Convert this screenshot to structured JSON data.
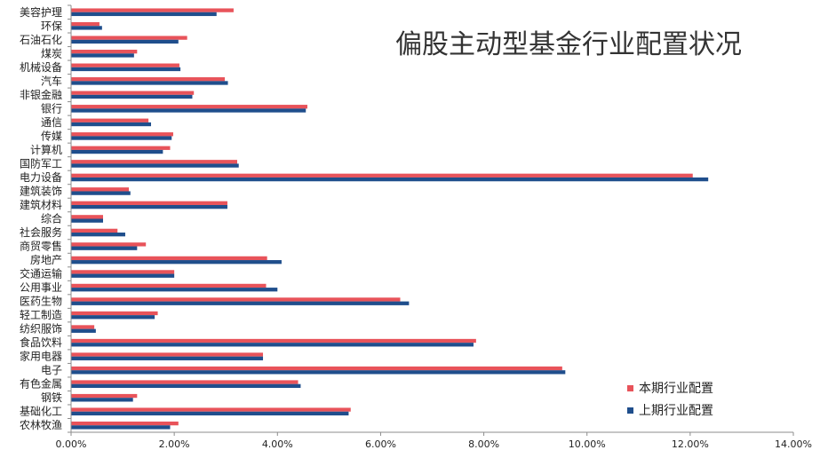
{
  "chart_data": {
    "type": "bar",
    "orientation": "horizontal",
    "title": "偏股主动型基金行业配置状况",
    "categories": [
      "美容护理",
      "环保",
      "石油石化",
      "煤炭",
      "机械设备",
      "汽车",
      "非银金融",
      "银行",
      "通信",
      "传媒",
      "计算机",
      "国防军工",
      "电力设备",
      "建筑装饰",
      "建筑材料",
      "综合",
      "社会服务",
      "商贸零售",
      "房地产",
      "交通运输",
      "公用事业",
      "医药生物",
      "轻工制造",
      "纺织服饰",
      "食品饮料",
      "家用电器",
      "电子",
      "有色金属",
      "钢铁",
      "基础化工",
      "农林牧渔"
    ],
    "series": [
      {
        "name": "本期行业配置",
        "color": "#e8535a",
        "values": [
          3.15,
          0.55,
          2.25,
          1.28,
          2.1,
          2.98,
          2.38,
          4.58,
          1.5,
          1.98,
          1.92,
          3.22,
          12.05,
          1.12,
          3.03,
          0.62,
          0.9,
          1.45,
          3.8,
          2.0,
          3.78,
          6.38,
          1.68,
          0.45,
          7.85,
          3.72,
          9.52,
          4.4,
          1.28,
          5.42,
          2.08
        ]
      },
      {
        "name": "上期行业配置",
        "color": "#1f4e8c",
        "values": [
          2.82,
          0.6,
          2.08,
          1.22,
          2.12,
          3.04,
          2.35,
          4.55,
          1.55,
          1.95,
          1.78,
          3.25,
          12.35,
          1.15,
          3.03,
          0.62,
          1.05,
          1.28,
          4.08,
          2.0,
          4.0,
          6.55,
          1.62,
          0.48,
          7.8,
          3.72,
          9.58,
          4.45,
          1.2,
          5.38,
          1.92
        ]
      }
    ],
    "xlim": [
      0,
      14
    ],
    "xticks": [
      "0.00%",
      "2.00%",
      "4.00%",
      "6.00%",
      "8.00%",
      "10.00%",
      "12.00%",
      "14.00%"
    ],
    "grid": false,
    "legend_position": "bottom-right"
  }
}
